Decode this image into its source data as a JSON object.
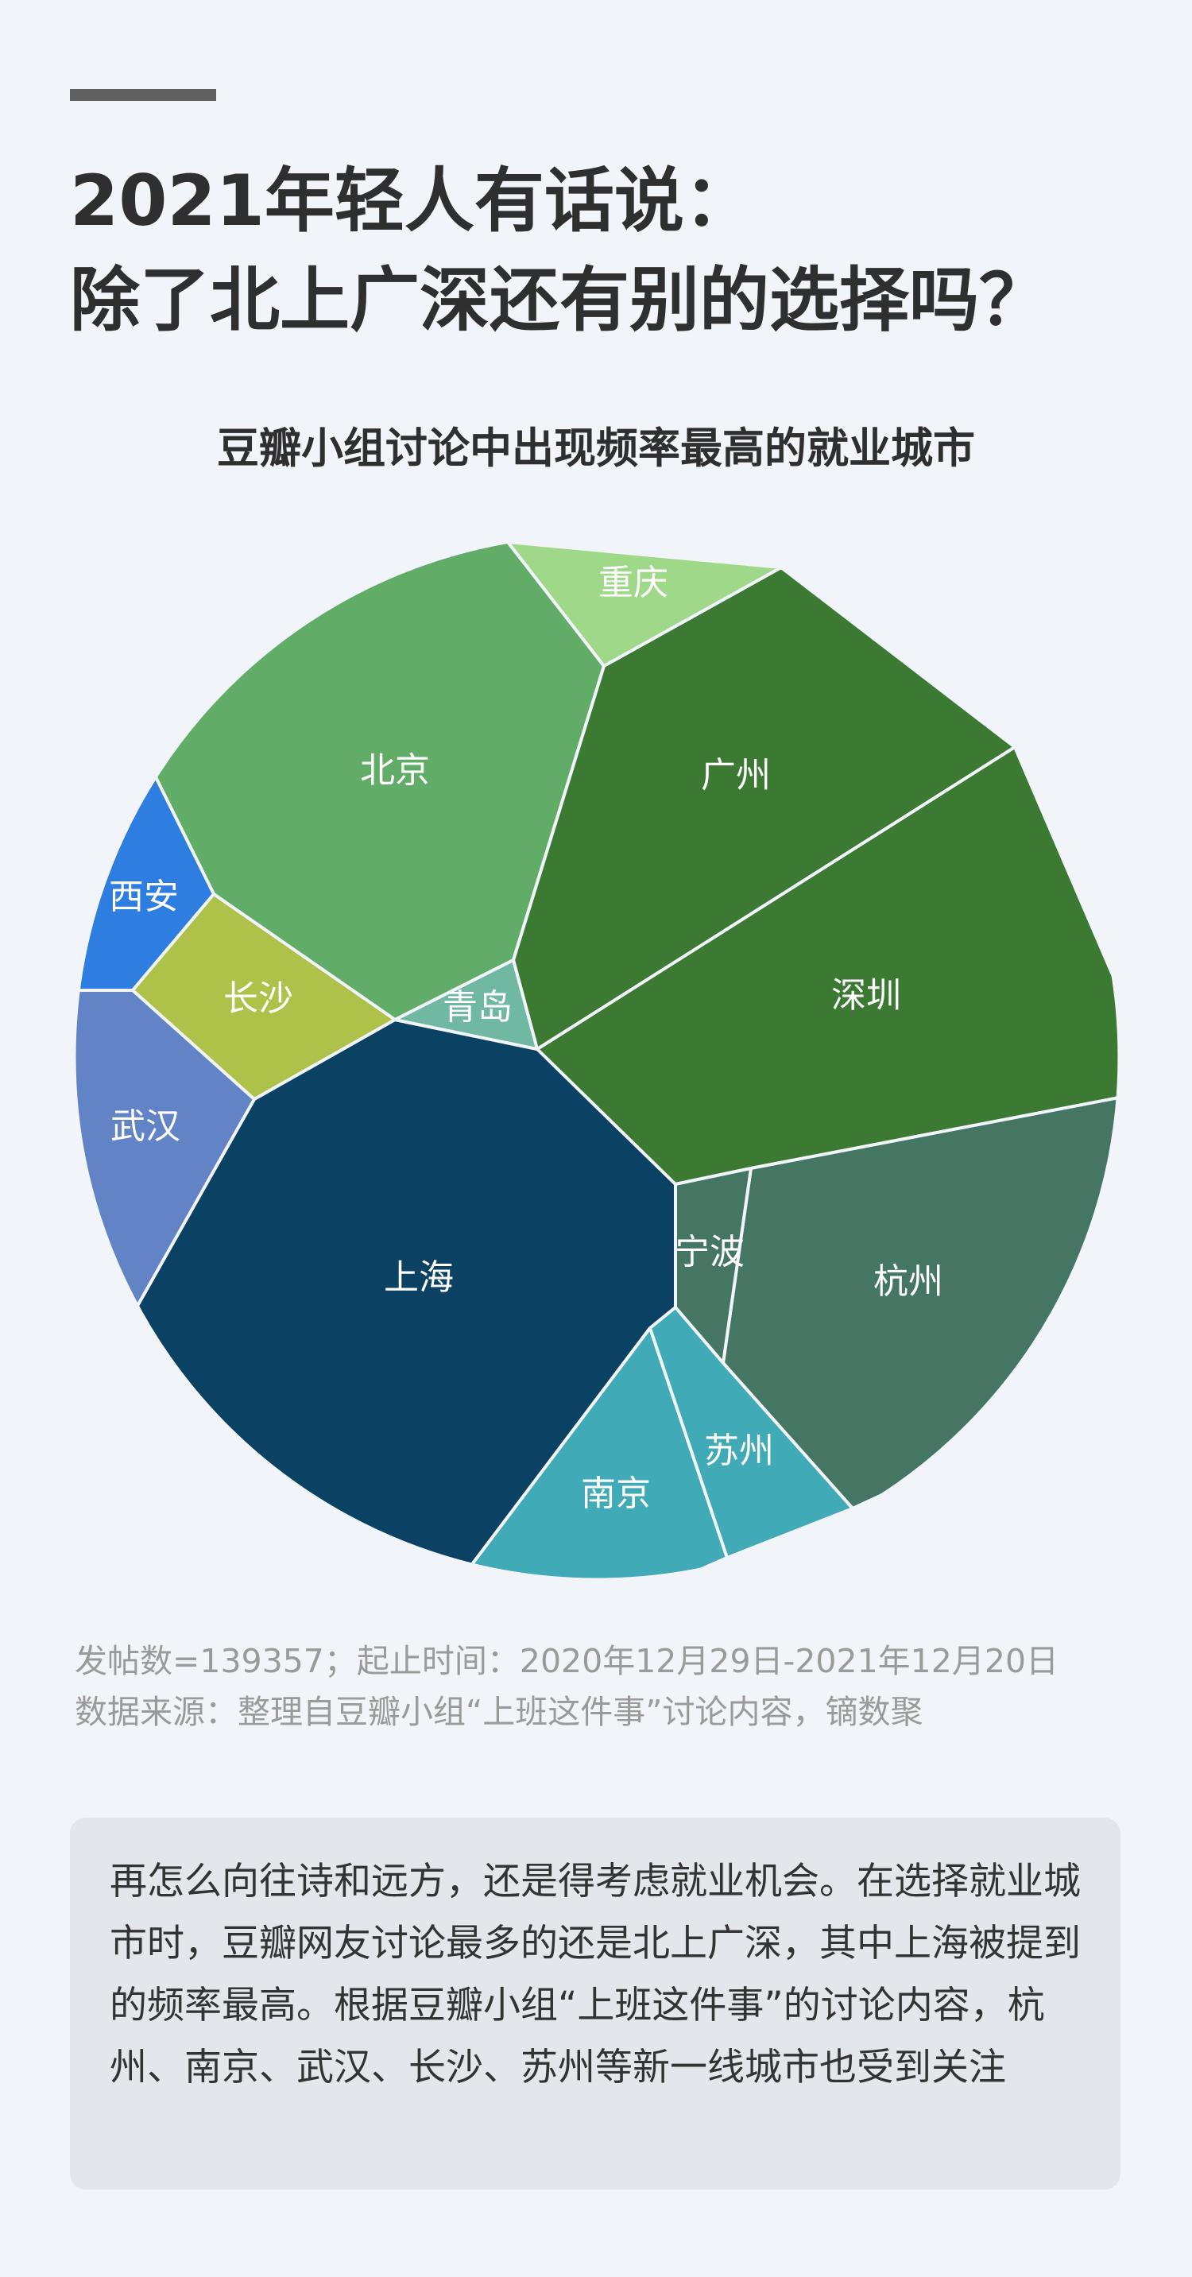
{
  "title": {
    "line1": "2021年轻人有话说：",
    "line2": "除了北上广深还有别的选择吗？"
  },
  "subtitle": "豆瓣小组讨论中出现频率最高的就业城市",
  "chart_data": {
    "type": "voronoi-treemap",
    "title": "豆瓣小组讨论中出现频率最高的就业城市",
    "cells": [
      {
        "name": "上海",
        "color": "#0b4263"
      },
      {
        "name": "北京",
        "color": "#61ad67"
      },
      {
        "name": "深圳",
        "color": "#3c7a33"
      },
      {
        "name": "广州",
        "color": "#3c7a33"
      },
      {
        "name": "杭州",
        "color": "#457563"
      },
      {
        "name": "宁波",
        "color": "#457563"
      },
      {
        "name": "南京",
        "color": "#40aab6"
      },
      {
        "name": "苏州",
        "color": "#40aab6"
      },
      {
        "name": "武汉",
        "color": "#6283c6"
      },
      {
        "name": "西安",
        "color": "#2e7ee1"
      },
      {
        "name": "长沙",
        "color": "#aec24a"
      },
      {
        "name": "重庆",
        "color": "#a0d889"
      },
      {
        "name": "青岛",
        "color": "#70b8a2"
      }
    ]
  },
  "notes": {
    "line1": "发帖数=139357；起止时间：2020年12月29日-2021年12月20日",
    "line2": "数据来源：整理自豆瓣小组“上班这件事”讨论内容，镝数聚"
  },
  "callout": "再怎么向往诗和远方，还是得考虑就业机会。在选择就业城市时，豆瓣网友讨论最多的还是北上广深，其中上海被提到的频率最高。根据豆瓣小组“上班这件事”的讨论内容，杭州、南京、武汉、长沙、苏州等新一线城市也受到关注"
}
